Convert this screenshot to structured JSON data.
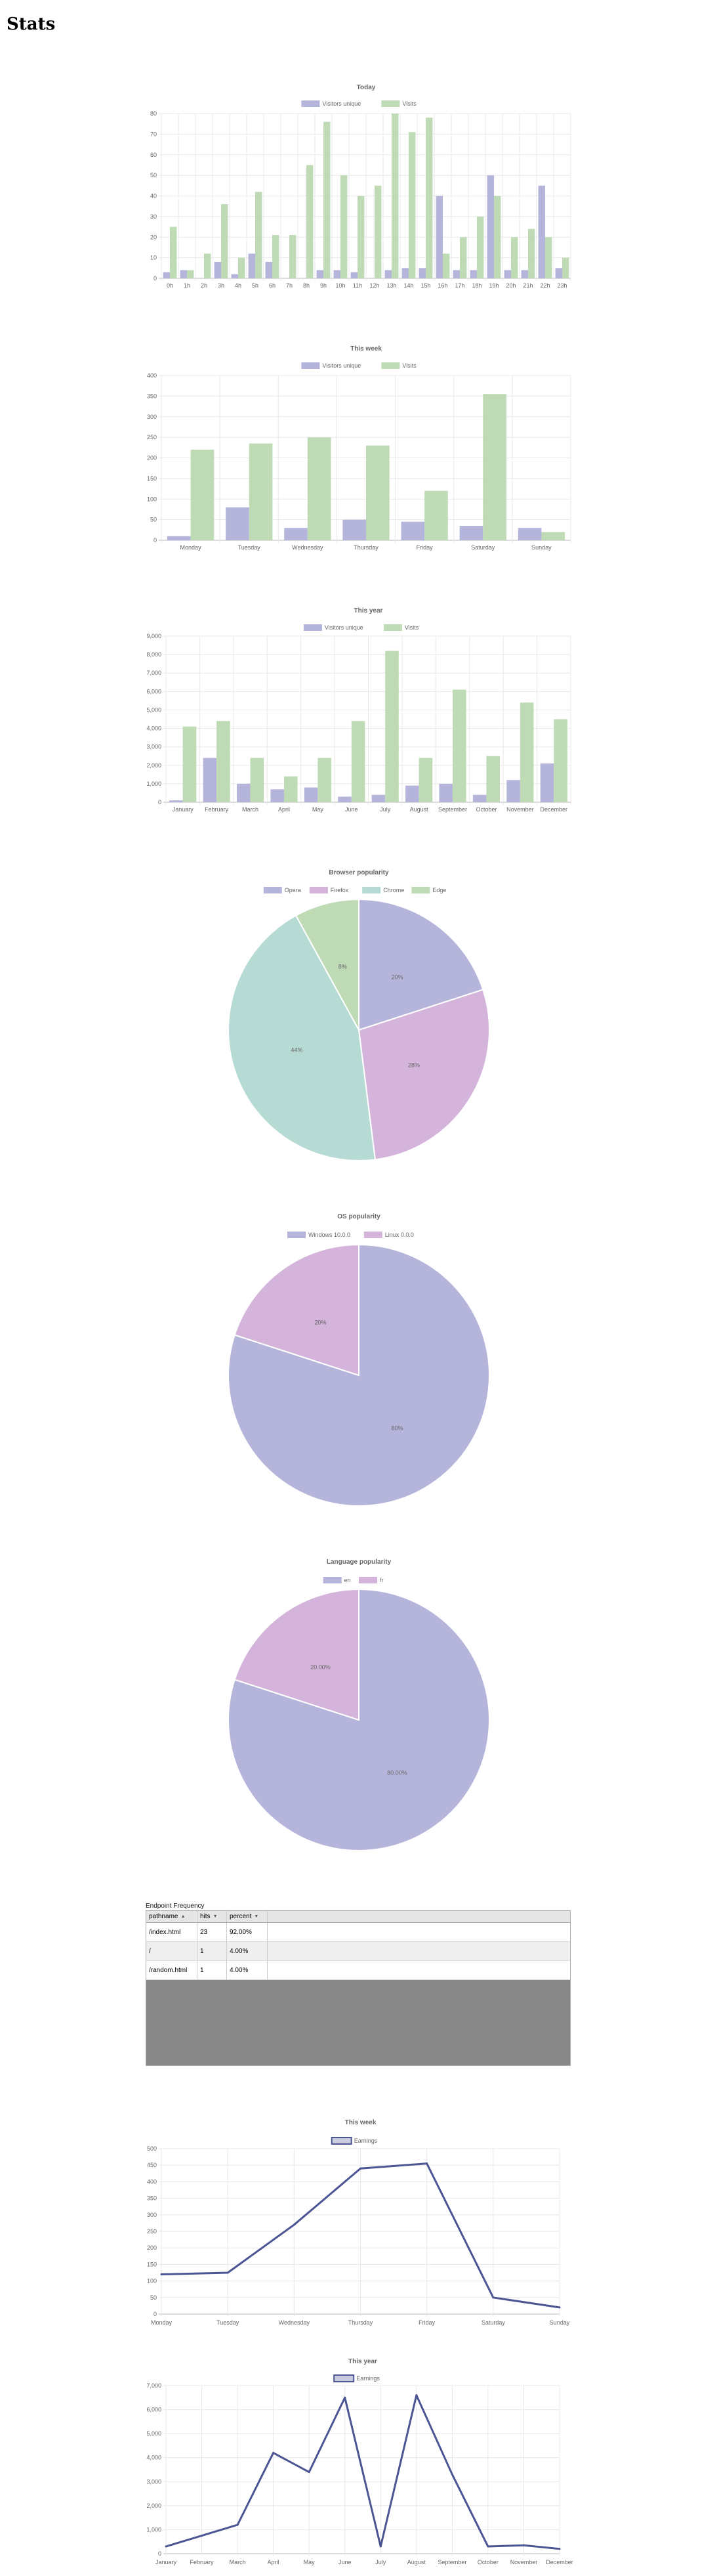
{
  "page": {
    "title": "Stats"
  },
  "colors": {
    "purple": "#b5b5dc",
    "green": "#bedbb5",
    "pink": "#d4b4da",
    "teal": "#b6dbd4",
    "line": "#4b5594",
    "grid": "#e8e8e8"
  },
  "endpoint": {
    "title": "Endpoint Frequency",
    "columns": [
      "pathname",
      "hits",
      "percent"
    ],
    "rows": [
      [
        "/index.html",
        "23",
        "92.00%"
      ],
      [
        "/",
        "1",
        "4.00%"
      ],
      [
        "/random.html",
        "1",
        "4.00%"
      ]
    ]
  },
  "chart_data": [
    {
      "id": "today",
      "type": "bar",
      "title": "Today",
      "categories": [
        "0h",
        "1h",
        "2h",
        "3h",
        "4h",
        "5h",
        "6h",
        "7h",
        "8h",
        "9h",
        "10h",
        "11h",
        "12h",
        "13h",
        "14h",
        "15h",
        "16h",
        "17h",
        "18h",
        "19h",
        "20h",
        "21h",
        "22h",
        "23h"
      ],
      "series": [
        {
          "name": "Visitors unique",
          "color": "#b5b5dc",
          "values": [
            3,
            4,
            0,
            8,
            2,
            12,
            8,
            0,
            0,
            4,
            4,
            3,
            0,
            4,
            5,
            5,
            40,
            4,
            4,
            50,
            4,
            4,
            45,
            5
          ]
        },
        {
          "name": "Visits",
          "color": "#bedbb5",
          "values": [
            25,
            4,
            12,
            36,
            10,
            42,
            21,
            21,
            55,
            76,
            50,
            40,
            45,
            80,
            71,
            78,
            12,
            20,
            30,
            40,
            20,
            24,
            20,
            10
          ]
        }
      ],
      "ylim": [
        0,
        80
      ],
      "yticks": [
        0,
        10,
        20,
        30,
        40,
        50,
        60,
        70,
        80
      ],
      "legend": "top"
    },
    {
      "id": "week",
      "type": "bar",
      "title": "This week",
      "categories": [
        "Monday",
        "Tuesday",
        "Wednesday",
        "Thursday",
        "Friday",
        "Saturday",
        "Sunday"
      ],
      "series": [
        {
          "name": "Visitors unique",
          "color": "#b5b5dc",
          "values": [
            10,
            80,
            30,
            50,
            45,
            35,
            30
          ]
        },
        {
          "name": "Visits",
          "color": "#bedbb5",
          "values": [
            220,
            235,
            250,
            230,
            120,
            355,
            20
          ]
        }
      ],
      "ylim": [
        0,
        400
      ],
      "yticks": [
        0,
        50,
        100,
        150,
        200,
        250,
        300,
        350,
        400
      ],
      "legend": "top"
    },
    {
      "id": "year",
      "type": "bar",
      "title": "This year",
      "categories": [
        "January",
        "February",
        "March",
        "April",
        "May",
        "June",
        "July",
        "August",
        "September",
        "October",
        "November",
        "December"
      ],
      "series": [
        {
          "name": "Visitors unique",
          "color": "#b5b5dc",
          "values": [
            100,
            2400,
            1000,
            700,
            800,
            300,
            400,
            900,
            1000,
            400,
            1200,
            2100
          ]
        },
        {
          "name": "Visits",
          "color": "#bedbb5",
          "values": [
            4100,
            4400,
            2400,
            1400,
            2400,
            4400,
            8200,
            2400,
            6100,
            2500,
            5400,
            4500
          ]
        }
      ],
      "ylim": [
        0,
        9000
      ],
      "yticks": [
        "0",
        "1,000",
        "2,000",
        "3,000",
        "4,000",
        "5,000",
        "6,000",
        "7,000",
        "8,000",
        "9,000"
      ],
      "legend": "top"
    },
    {
      "id": "browser",
      "type": "pie",
      "title": "Browser popularity",
      "labels": [
        "Opera",
        "Firefox",
        "Chrome",
        "Edge"
      ],
      "colors": [
        "#b5b5dc",
        "#d4b4da",
        "#b6dbd4",
        "#bedbb5"
      ],
      "values": [
        20,
        28,
        44,
        8
      ],
      "data_labels": [
        "20%",
        "28%",
        "44%",
        "8%"
      ],
      "legend": "top"
    },
    {
      "id": "os",
      "type": "pie",
      "title": "OS popularity",
      "labels": [
        "Windows 10.0.0",
        "Linux 0.0.0"
      ],
      "colors": [
        "#b5b5dc",
        "#d4b4da"
      ],
      "values": [
        80,
        20
      ],
      "data_labels": [
        "80%",
        "20%"
      ],
      "legend": "top"
    },
    {
      "id": "language",
      "type": "pie",
      "title": "Language popularity",
      "labels": [
        "en",
        "fr"
      ],
      "colors": [
        "#b5b5dc",
        "#d4b4da"
      ],
      "values": [
        80.0,
        20.0
      ],
      "data_labels": [
        "80.00%",
        "20.00%"
      ],
      "legend": "top"
    },
    {
      "id": "earn-week",
      "type": "line",
      "title": "This week",
      "categories": [
        "Monday",
        "Tuesday",
        "Wednesday",
        "Thursday",
        "Friday",
        "Saturday",
        "Sunday"
      ],
      "series": [
        {
          "name": "Earnings",
          "color": "#4b5594",
          "values": [
            120,
            125,
            270,
            440,
            455,
            50,
            20
          ]
        }
      ],
      "ylim": [
        0,
        500
      ],
      "yticks": [
        0,
        50,
        100,
        150,
        200,
        250,
        300,
        350,
        400,
        450,
        500
      ],
      "legend": "top"
    },
    {
      "id": "earn-year",
      "type": "line",
      "title": "This year",
      "categories": [
        "January",
        "February",
        "March",
        "April",
        "May",
        "June",
        "July",
        "August",
        "September",
        "October",
        "November",
        "December"
      ],
      "series": [
        {
          "name": "Earnings",
          "color": "#4b5594",
          "values": [
            300,
            750,
            1200,
            4200,
            3400,
            6500,
            300,
            6600,
            3300,
            300,
            350,
            200
          ]
        }
      ],
      "ylim": [
        0,
        7000
      ],
      "yticks": [
        "0",
        "1,000",
        "2,000",
        "3,000",
        "4,000",
        "5,000",
        "6,000",
        "7,000"
      ],
      "legend": "top"
    }
  ]
}
